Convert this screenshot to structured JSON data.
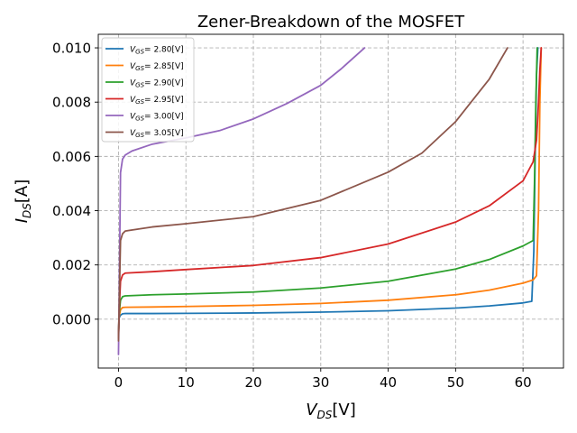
{
  "chart_data": {
    "type": "line",
    "title": "Zener-Breakdown of the MOSFET",
    "xlabel": "V_DS[V]",
    "ylabel": "I_DS[A]",
    "xlim": [
      -3,
      66
    ],
    "ylim": [
      -0.0018,
      0.0105
    ],
    "xticks": [
      0,
      10,
      20,
      30,
      40,
      50,
      60
    ],
    "yticks": [
      0.0,
      0.002,
      0.004,
      0.006,
      0.008,
      0.01
    ],
    "xtick_labels": [
      "0",
      "10",
      "20",
      "30",
      "40",
      "50",
      "60"
    ],
    "ytick_labels": [
      "0.000",
      "0.002",
      "0.004",
      "0.006",
      "0.008",
      "0.010"
    ],
    "grid": true,
    "legend_position": "top-left",
    "series": [
      {
        "name": "V_GS = 2.80[V]",
        "color": "#1f77b4",
        "x": [
          0,
          0.1,
          0.3,
          0.6,
          1,
          5,
          10,
          20,
          30,
          40,
          50,
          55,
          60,
          61.3,
          61.6,
          61.8,
          62.0,
          62.2
        ],
        "y": [
          -0.0005,
          5e-05,
          0.00015,
          0.0002,
          0.00021,
          0.00021,
          0.000215,
          0.00023,
          0.00026,
          0.00031,
          0.00041,
          0.00049,
          0.0006,
          0.00066,
          0.0025,
          0.006,
          0.009,
          0.01
        ]
      },
      {
        "name": "V_GS = 2.85[V]",
        "color": "#ff7f0e",
        "x": [
          0,
          0.1,
          0.3,
          0.6,
          1,
          5,
          10,
          20,
          30,
          40,
          50,
          55,
          60,
          61.5,
          62.0,
          62.3,
          62.5,
          62.7
        ],
        "y": [
          -0.0007,
          0.0001,
          0.00035,
          0.00043,
          0.00044,
          0.00045,
          0.00047,
          0.00051,
          0.00058,
          0.0007,
          0.0009,
          0.00107,
          0.00133,
          0.00145,
          0.0016,
          0.004,
          0.008,
          0.01
        ]
      },
      {
        "name": "V_GS = 2.90[V]",
        "color": "#2ca02c",
        "x": [
          0,
          0.1,
          0.3,
          0.6,
          1,
          5,
          10,
          20,
          30,
          40,
          50,
          55,
          60,
          61.5,
          61.7,
          61.9,
          62.1
        ],
        "y": [
          -0.0006,
          0.0002,
          0.0007,
          0.00083,
          0.00086,
          0.0009,
          0.00093,
          0.001,
          0.00115,
          0.0014,
          0.00185,
          0.0022,
          0.0027,
          0.0029,
          0.005,
          0.008,
          0.01
        ]
      },
      {
        "name": "V_GS = 2.95[V]",
        "color": "#d62728",
        "x": [
          0,
          0.1,
          0.3,
          0.6,
          1,
          5,
          10,
          20,
          30,
          40,
          50,
          55,
          60,
          61.5,
          62.0,
          62.3,
          62.5,
          62.7
        ],
        "y": [
          -0.0007,
          0.0003,
          0.0014,
          0.00163,
          0.0017,
          0.00175,
          0.00183,
          0.00198,
          0.00227,
          0.00277,
          0.00358,
          0.00418,
          0.0051,
          0.0058,
          0.0066,
          0.008,
          0.0092,
          0.01
        ]
      },
      {
        "name": "V_GS = 3.00[V]",
        "color": "#9467bd",
        "x": [
          0,
          0.1,
          0.3,
          0.6,
          1,
          2,
          5,
          10,
          15,
          20,
          25,
          30,
          33,
          36.5
        ],
        "y": [
          -0.0013,
          0.0008,
          0.0054,
          0.0059,
          0.00605,
          0.0062,
          0.00645,
          0.00668,
          0.00695,
          0.00738,
          0.00795,
          0.00862,
          0.00922,
          0.01
        ]
      },
      {
        "name": "V_GS = 3.05[V]",
        "color": "#8c564b",
        "x": [
          0,
          0.1,
          0.3,
          0.6,
          1,
          5,
          10,
          20,
          30,
          40,
          45,
          50,
          55,
          57.7
        ],
        "y": [
          -0.0008,
          0.0005,
          0.0029,
          0.00315,
          0.00325,
          0.0034,
          0.00352,
          0.00378,
          0.00438,
          0.00542,
          0.00612,
          0.00728,
          0.00885,
          0.01
        ]
      }
    ]
  }
}
